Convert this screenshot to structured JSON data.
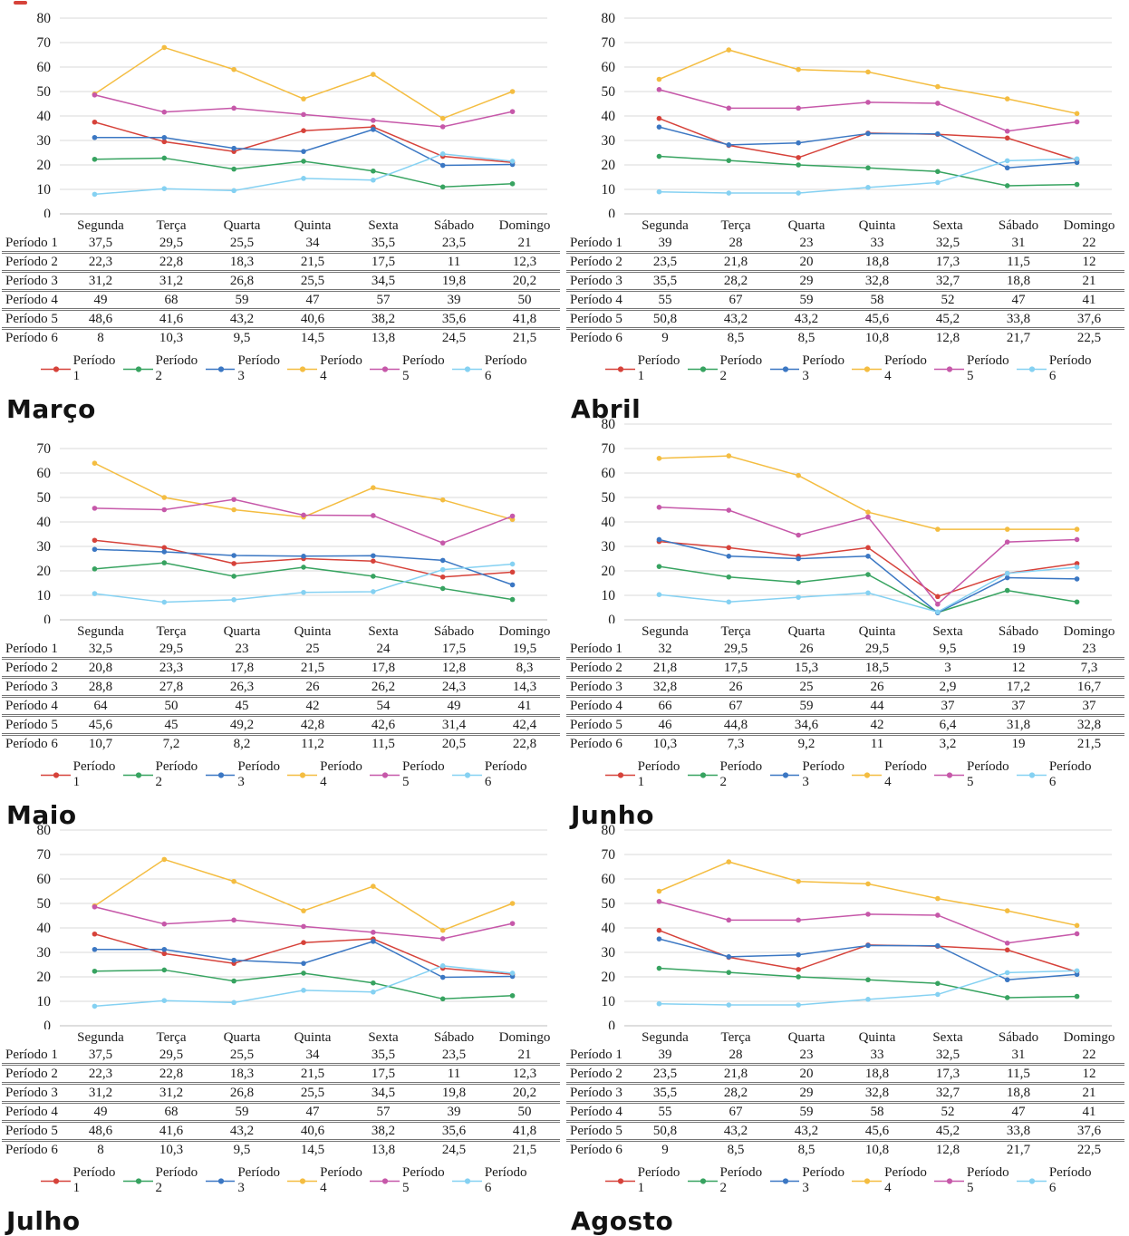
{
  "colors": {
    "periodo1": "#d6423a",
    "periodo2": "#37a360",
    "periodo3": "#3b77c3",
    "periodo4": "#f4bd41",
    "periodo5": "#c658a9",
    "periodo6": "#85d1f2",
    "gridline": "#dadada",
    "zero_axis": "#bdbdbd",
    "table_border": "#757575",
    "text": "#1a1a1a"
  },
  "days": [
    "Segunda",
    "Terça",
    "Quarta",
    "Quinta",
    "Sexta",
    "Sábado",
    "Domingo"
  ],
  "period_labels": [
    "Período 1",
    "Período 2",
    "Período 3",
    "Período 4",
    "Período 5",
    "Período 6"
  ],
  "chart_data": [
    {
      "type": "line",
      "title": "Março",
      "xlabel": "",
      "ylabel": "",
      "ylim": [
        0,
        80
      ],
      "ytick_step": 10,
      "grid": "horizontal",
      "legend_position": "bottom",
      "categories": [
        "Segunda",
        "Terça",
        "Quarta",
        "Quinta",
        "Sexta",
        "Sábado",
        "Domingo"
      ],
      "series": [
        {
          "name": "Período 1",
          "color_key": "periodo1",
          "values": [
            37.5,
            29.5,
            25.5,
            34,
            35.5,
            23.5,
            21
          ]
        },
        {
          "name": "Período 2",
          "color_key": "periodo2",
          "values": [
            22.3,
            22.8,
            18.3,
            21.5,
            17.5,
            11,
            12.3
          ]
        },
        {
          "name": "Período 3",
          "color_key": "periodo3",
          "values": [
            31.2,
            31.2,
            26.8,
            25.5,
            34.5,
            19.8,
            20.2
          ]
        },
        {
          "name": "Período 4",
          "color_key": "periodo4",
          "values": [
            49,
            68,
            59,
            47,
            57,
            39,
            50
          ]
        },
        {
          "name": "Período 5",
          "color_key": "periodo5",
          "values": [
            48.6,
            41.6,
            43.2,
            40.6,
            38.2,
            35.6,
            41.8
          ]
        },
        {
          "name": "Período 6",
          "color_key": "periodo6",
          "values": [
            8,
            10.3,
            9.5,
            14.5,
            13.8,
            24.5,
            21.5
          ]
        }
      ]
    },
    {
      "type": "line",
      "title": "Abril",
      "xlabel": "",
      "ylabel": "",
      "ylim": [
        0,
        80
      ],
      "ytick_step": 10,
      "grid": "horizontal",
      "legend_position": "bottom",
      "categories": [
        "Segunda",
        "Terça",
        "Quarta",
        "Quinta",
        "Sexta",
        "Sábado",
        "Domingo"
      ],
      "series": [
        {
          "name": "Período 1",
          "color_key": "periodo1",
          "values": [
            39,
            28,
            23,
            33,
            32.5,
            31,
            22
          ]
        },
        {
          "name": "Período 2",
          "color_key": "periodo2",
          "values": [
            23.5,
            21.8,
            20,
            18.8,
            17.3,
            11.5,
            12
          ]
        },
        {
          "name": "Período 3",
          "color_key": "periodo3",
          "values": [
            35.5,
            28.2,
            29,
            32.8,
            32.7,
            18.8,
            21
          ]
        },
        {
          "name": "Período 4",
          "color_key": "periodo4",
          "values": [
            55,
            67,
            59,
            58,
            52,
            47,
            41
          ]
        },
        {
          "name": "Período 5",
          "color_key": "periodo5",
          "values": [
            50.8,
            43.2,
            43.2,
            45.6,
            45.2,
            33.8,
            37.6
          ]
        },
        {
          "name": "Período 6",
          "color_key": "periodo6",
          "values": [
            9,
            8.5,
            8.5,
            10.8,
            12.8,
            21.7,
            22.5
          ]
        }
      ]
    },
    {
      "type": "line",
      "title": "Maio",
      "xlabel": "",
      "ylabel": "",
      "ylim": [
        0,
        70
      ],
      "ytick_step": 10,
      "grid": "horizontal",
      "legend_position": "bottom",
      "categories": [
        "Segunda",
        "Terça",
        "Quarta",
        "Quinta",
        "Sexta",
        "Sábado",
        "Domingo"
      ],
      "series": [
        {
          "name": "Período 1",
          "color_key": "periodo1",
          "values": [
            32.5,
            29.5,
            23,
            25,
            24,
            17.5,
            19.5
          ]
        },
        {
          "name": "Período 2",
          "color_key": "periodo2",
          "values": [
            20.8,
            23.3,
            17.8,
            21.5,
            17.8,
            12.8,
            8.3
          ]
        },
        {
          "name": "Período 3",
          "color_key": "periodo3",
          "values": [
            28.8,
            27.8,
            26.3,
            26,
            26.2,
            24.3,
            14.3
          ]
        },
        {
          "name": "Período 4",
          "color_key": "periodo4",
          "values": [
            64,
            50,
            45,
            42,
            54,
            49,
            41
          ]
        },
        {
          "name": "Período 5",
          "color_key": "periodo5",
          "values": [
            45.6,
            45,
            49.2,
            42.8,
            42.6,
            31.4,
            42.4
          ]
        },
        {
          "name": "Período 6",
          "color_key": "periodo6",
          "values": [
            10.7,
            7.2,
            8.2,
            11.2,
            11.5,
            20.5,
            22.8
          ]
        }
      ]
    },
    {
      "type": "line",
      "title": "Junho",
      "xlabel": "",
      "ylabel": "",
      "ylim": [
        0,
        80
      ],
      "ytick_step": 10,
      "grid": "horizontal",
      "legend_position": "bottom",
      "categories": [
        "Segunda",
        "Terça",
        "Quarta",
        "Quinta",
        "Sexta",
        "Sábado",
        "Domingo"
      ],
      "series": [
        {
          "name": "Período 1",
          "color_key": "periodo1",
          "values": [
            32,
            29.5,
            26,
            29.5,
            9.5,
            19,
            23
          ]
        },
        {
          "name": "Período 2",
          "color_key": "periodo2",
          "values": [
            21.8,
            17.5,
            15.3,
            18.5,
            3,
            12,
            7.3
          ]
        },
        {
          "name": "Período 3",
          "color_key": "periodo3",
          "values": [
            32.8,
            26,
            25,
            26,
            2.9,
            17.2,
            16.7
          ]
        },
        {
          "name": "Período 4",
          "color_key": "periodo4",
          "values": [
            66,
            67,
            59,
            44,
            37,
            37,
            37
          ]
        },
        {
          "name": "Período 5",
          "color_key": "periodo5",
          "values": [
            46,
            44.8,
            34.6,
            42,
            6.4,
            31.8,
            32.8
          ]
        },
        {
          "name": "Período 6",
          "color_key": "periodo6",
          "values": [
            10.3,
            7.3,
            9.2,
            11,
            3.2,
            19,
            21.5
          ]
        }
      ]
    },
    {
      "type": "line",
      "title": "Julho",
      "xlabel": "",
      "ylabel": "",
      "ylim": [
        0,
        80
      ],
      "ytick_step": 10,
      "grid": "horizontal",
      "legend_position": "bottom",
      "categories": [
        "Segunda",
        "Terça",
        "Quarta",
        "Quinta",
        "Sexta",
        "Sábado",
        "Domingo"
      ],
      "series": [
        {
          "name": "Período 1",
          "color_key": "periodo1",
          "values": [
            37.5,
            29.5,
            25.5,
            34,
            35.5,
            23.5,
            21
          ]
        },
        {
          "name": "Período 2",
          "color_key": "periodo2",
          "values": [
            22.3,
            22.8,
            18.3,
            21.5,
            17.5,
            11,
            12.3
          ]
        },
        {
          "name": "Período 3",
          "color_key": "periodo3",
          "values": [
            31.2,
            31.2,
            26.8,
            25.5,
            34.5,
            19.8,
            20.2
          ]
        },
        {
          "name": "Período 4",
          "color_key": "periodo4",
          "values": [
            49,
            68,
            59,
            47,
            57,
            39,
            50
          ]
        },
        {
          "name": "Período 5",
          "color_key": "periodo5",
          "values": [
            48.6,
            41.6,
            43.2,
            40.6,
            38.2,
            35.6,
            41.8
          ]
        },
        {
          "name": "Período 6",
          "color_key": "periodo6",
          "values": [
            8,
            10.3,
            9.5,
            14.5,
            13.8,
            24.5,
            21.5
          ]
        }
      ]
    },
    {
      "type": "line",
      "title": "Agosto",
      "xlabel": "",
      "ylabel": "",
      "ylim": [
        0,
        80
      ],
      "ytick_step": 10,
      "grid": "horizontal",
      "legend_position": "bottom",
      "categories": [
        "Segunda",
        "Terça",
        "Quarta",
        "Quinta",
        "Sexta",
        "Sábado",
        "Domingo"
      ],
      "series": [
        {
          "name": "Período 1",
          "color_key": "periodo1",
          "values": [
            39,
            28,
            23,
            33,
            32.5,
            31,
            22
          ]
        },
        {
          "name": "Período 2",
          "color_key": "periodo2",
          "values": [
            23.5,
            21.8,
            20,
            18.8,
            17.3,
            11.5,
            12
          ]
        },
        {
          "name": "Período 3",
          "color_key": "periodo3",
          "values": [
            35.5,
            28.2,
            29,
            32.8,
            32.7,
            18.8,
            21
          ]
        },
        {
          "name": "Período 4",
          "color_key": "periodo4",
          "values": [
            55,
            67,
            59,
            58,
            52,
            47,
            41
          ]
        },
        {
          "name": "Período 5",
          "color_key": "periodo5",
          "values": [
            50.8,
            43.2,
            43.2,
            45.6,
            45.2,
            33.8,
            37.6
          ]
        },
        {
          "name": "Período 6",
          "color_key": "periodo6",
          "values": [
            9,
            8.5,
            8.5,
            10.8,
            12.8,
            21.7,
            22.5
          ]
        }
      ]
    }
  ]
}
